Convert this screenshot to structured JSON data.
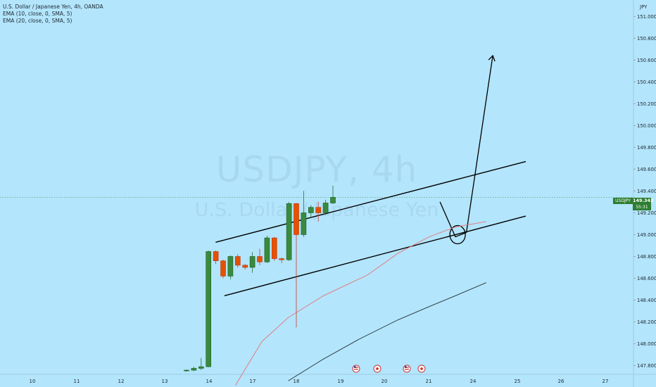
{
  "legend": {
    "line1": "U.S. Dollar / Japanese Yen, 4h, OANDA",
    "line2": "EMA (10, close, 0, SMA, 5)",
    "line3": "EMA (20, close, 0, SMA, 5)"
  },
  "watermark": {
    "symbol": "USDJPY, 4h",
    "name": "U.S. Dollar / Japanese Yen"
  },
  "price_tag": {
    "symbol": "USDJPY",
    "price": "149.342",
    "countdown": "55:31"
  },
  "colors": {
    "background": "#b3e5fc",
    "bull": "#3a8a3e",
    "bear": "#e65100",
    "ema10": "#e57373",
    "ema20": "#263238",
    "drawing": "#000000"
  },
  "chart_data": {
    "type": "candlestick",
    "title": "U.S. Dollar / Japanese Yen, 4h, OANDA",
    "y_axis": {
      "unit": "JPY",
      "ticks": [
        "151.000",
        "150.800",
        "150.600",
        "150.400",
        "150.200",
        "150.000",
        "149.800",
        "149.600",
        "149.400",
        "149.200",
        "149.000",
        "148.800",
        "148.600",
        "148.400",
        "148.200",
        "148.000",
        "147.800"
      ],
      "range": [
        147.72,
        151.15
      ]
    },
    "x_axis": {
      "ticks": [
        "10",
        "11",
        "12",
        "13",
        "14",
        "17",
        "18",
        "19",
        "20",
        "21",
        "24",
        "25",
        "26",
        "27"
      ]
    },
    "candles": [
      {
        "o": 147.755,
        "h": 147.765,
        "l": 147.745,
        "c": 147.758
      },
      {
        "o": 147.758,
        "h": 147.79,
        "l": 147.75,
        "c": 147.775
      },
      {
        "o": 147.775,
        "h": 147.87,
        "l": 147.76,
        "c": 147.79
      },
      {
        "o": 147.79,
        "h": 148.855,
        "l": 147.785,
        "c": 148.845
      },
      {
        "o": 148.845,
        "h": 148.855,
        "l": 148.73,
        "c": 148.76
      },
      {
        "o": 148.76,
        "h": 148.77,
        "l": 148.6,
        "c": 148.62
      },
      {
        "o": 148.62,
        "h": 148.81,
        "l": 148.59,
        "c": 148.8
      },
      {
        "o": 148.8,
        "h": 148.82,
        "l": 148.7,
        "c": 148.72
      },
      {
        "o": 148.72,
        "h": 148.73,
        "l": 148.68,
        "c": 148.7
      },
      {
        "o": 148.7,
        "h": 148.84,
        "l": 148.65,
        "c": 148.8
      },
      {
        "o": 148.8,
        "h": 148.87,
        "l": 148.72,
        "c": 148.75
      },
      {
        "o": 148.75,
        "h": 148.99,
        "l": 148.74,
        "c": 148.97
      },
      {
        "o": 148.97,
        "h": 148.98,
        "l": 148.76,
        "c": 148.78
      },
      {
        "o": 148.78,
        "h": 148.79,
        "l": 148.74,
        "c": 148.77
      },
      {
        "o": 148.77,
        "h": 149.3,
        "l": 148.76,
        "c": 149.285
      },
      {
        "o": 149.285,
        "h": 149.29,
        "l": 148.15,
        "c": 149.0
      },
      {
        "o": 149.0,
        "h": 149.4,
        "l": 148.98,
        "c": 149.2
      },
      {
        "o": 149.2,
        "h": 149.27,
        "l": 149.15,
        "c": 149.25
      },
      {
        "o": 149.25,
        "h": 149.3,
        "l": 149.12,
        "c": 149.2
      },
      {
        "o": 149.2,
        "h": 149.32,
        "l": 149.18,
        "c": 149.29
      },
      {
        "o": 149.29,
        "h": 149.45,
        "l": 149.28,
        "c": 149.342
      }
    ],
    "ema10": [
      [
        14.6,
        147.62
      ],
      [
        15.2,
        148.02
      ],
      [
        15.8,
        148.24
      ],
      [
        16.6,
        148.44
      ],
      [
        17.6,
        148.63
      ],
      [
        18.3,
        148.83
      ],
      [
        19.0,
        148.98
      ],
      [
        19.6,
        149.07
      ],
      [
        20.3,
        149.12
      ]
    ],
    "ema20": [
      [
        15.8,
        147.66
      ],
      [
        16.6,
        147.86
      ],
      [
        17.4,
        148.04
      ],
      [
        18.3,
        148.22
      ],
      [
        19.0,
        148.34
      ],
      [
        19.6,
        148.44
      ],
      [
        20.3,
        148.56
      ]
    ]
  }
}
